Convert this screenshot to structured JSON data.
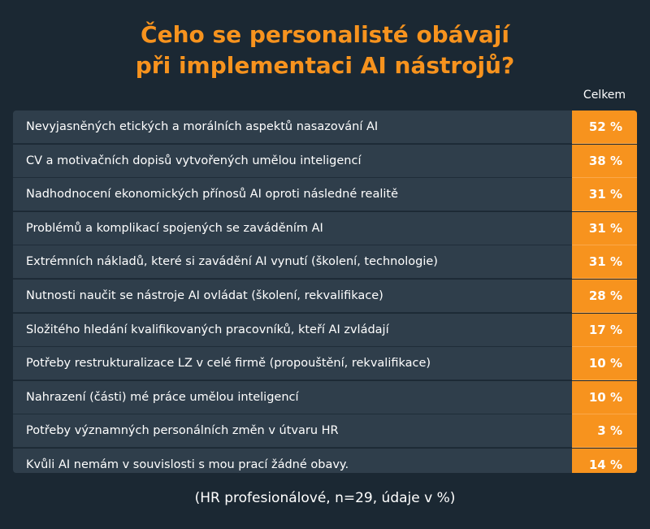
{
  "title_line1": "Čeho se personalisté obávají",
  "title_line2": "při implementaci AI nástrojů?",
  "column_header": "Celkem",
  "footnote": "(HR profesionálové, n=29, údaje v %)",
  "colors": {
    "background": "#1b2833",
    "row_background": "#2f3e4b",
    "accent": "#f7931e"
  },
  "chart_data": {
    "type": "table",
    "title": "Čeho se personalisté obávají při implementaci AI nástrojů?",
    "column_header": "Celkem",
    "unit": "%",
    "rows": [
      {
        "label": "Nevyjasněných etických a morálních aspektů nasazování AI",
        "value": 52,
        "display": "52 %"
      },
      {
        "label": "CV a motivačních dopisů vytvořených umělou inteligencí",
        "value": 38,
        "display": "38 %"
      },
      {
        "label": "Nadhodnocení ekonomických přínosů AI oproti následné realitě",
        "value": 31,
        "display": "31 %"
      },
      {
        "label": "Problémů a komplikací spojených se zaváděním AI",
        "value": 31,
        "display": "31 %"
      },
      {
        "label": "Extrémních nákladů, které si zavádění AI vynutí (školení, technologie)",
        "value": 31,
        "display": "31 %"
      },
      {
        "label": "Nutnosti naučit se nástroje AI ovládat (školení, rekvalifikace)",
        "value": 28,
        "display": "28 %"
      },
      {
        "label": "Složitého hledání kvalifikovaných pracovníků, kteří AI zvládají",
        "value": 17,
        "display": "17 %"
      },
      {
        "label": "Potřeby restrukturalizace LZ v celé firmě (propouštění, rekvalifikace)",
        "value": 10,
        "display": "10 %"
      },
      {
        "label": "Nahrazení (části) mé práce umělou inteligencí",
        "value": 10,
        "display": "10 %"
      },
      {
        "label": "Potřeby významných personálních změn v útvaru HR",
        "value": 3,
        "display": "3 %"
      },
      {
        "label": "Kvůli AI nemám v souvislosti s mou prací žádné obavy.",
        "value": 14,
        "display": "14 %"
      }
    ],
    "footnote": "(HR profesionálové, n=29, údaje v %)"
  }
}
